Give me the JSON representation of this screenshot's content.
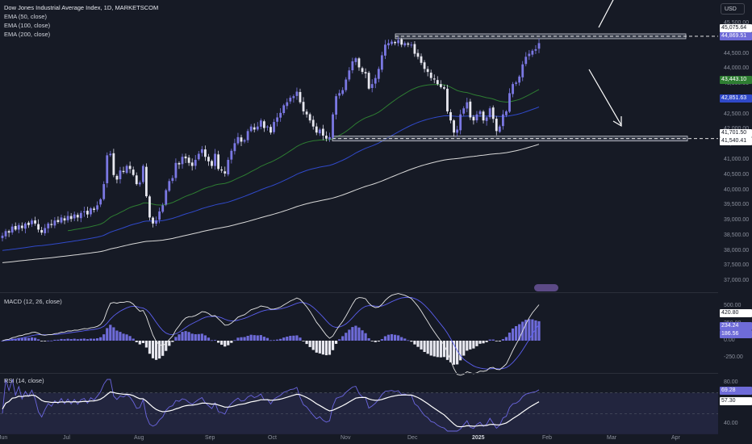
{
  "header": {
    "title": "Dow Jones Industrial Average Index, 1D, MARKETSCOM",
    "ema50": "EMA (50, close)",
    "ema100": "EMA (100, close)",
    "ema200": "EMA (200, close)",
    "currency": "USD",
    "macd_label": "MACD (12, 26, close)",
    "rsi_label": "RSI (14, close)"
  },
  "colors": {
    "bg": "#161a25",
    "candle": "#7b78e3",
    "ema50": "#2e7d32",
    "ema100": "#3049c9",
    "ema200": "#d8d8d8",
    "macd_line": "#e6e6e6",
    "signal_line": "#5b5ff0",
    "rsi_line": "#6b66e0",
    "rsi_ma": "#ffffff",
    "level_zone": "#5a5f6e"
  },
  "chart_data": [
    {
      "type": "candlestick",
      "title": "Dow Jones Industrial Average Index, 1D, MARKETSCOM",
      "x_ticks": [
        "Jun",
        "Jul",
        "Aug",
        "Sep",
        "Oct",
        "Nov",
        "Dec",
        "2025",
        "Feb",
        "Mar",
        "Apr"
      ],
      "y_ticks": [
        "45,500.00",
        "45,000.00",
        "44,500.00",
        "44,000.00",
        "43,500.00",
        "43,000.00",
        "42,500.00",
        "42,000.00",
        "41,500.00",
        "41,000.00",
        "40,500.00",
        "40,000.00",
        "39,500.00",
        "39,000.00",
        "38,500.00",
        "38,000.00",
        "37,500.00",
        "37,000.00"
      ],
      "ylim": [
        36900,
        45900
      ],
      "close": [
        38500,
        38650,
        38600,
        38800,
        38700,
        38850,
        38750,
        38900,
        38850,
        39000,
        38900,
        38700,
        38600,
        38750,
        38900,
        38850,
        39000,
        38950,
        39100,
        39000,
        39150,
        39050,
        39200,
        39100,
        39250,
        39300,
        39200,
        39400,
        39350,
        39500,
        39700,
        40200,
        41150,
        41200,
        40500,
        40350,
        40650,
        40600,
        40800,
        40700,
        40500,
        40200,
        40250,
        40800,
        39800,
        39100,
        38900,
        39000,
        39300,
        39500,
        40000,
        40300,
        40400,
        40900,
        40850,
        41100,
        41050,
        40900,
        40800,
        41000,
        41200,
        41350,
        41100,
        40950,
        40800,
        41200,
        40700,
        40650,
        40550,
        41000,
        41300,
        41550,
        41750,
        41600,
        41650,
        41950,
        42100,
        42000,
        42100,
        42300,
        42050,
        42100,
        41900,
        42250,
        42400,
        42550,
        42800,
        42900,
        43050,
        43100,
        43250,
        42900,
        42600,
        42500,
        42300,
        42100,
        41900,
        42000,
        41800,
        41700,
        41750,
        42500,
        43100,
        43200,
        43300,
        43650,
        43950,
        44250,
        44350,
        44050,
        43900,
        43850,
        43350,
        43500,
        43700,
        44000,
        44450,
        44800,
        44850,
        44900,
        44850,
        44950,
        44800,
        44850,
        44800,
        44800,
        44500,
        44400,
        44200,
        44000,
        43900,
        43700,
        43650,
        43500,
        43400,
        43350,
        42600,
        42300,
        41900,
        42000,
        42500,
        42700,
        42900,
        42400,
        42300,
        42500,
        42600,
        42300,
        42400,
        42700,
        42350,
        41950,
        42100,
        42500,
        42600,
        43200,
        43500,
        43550,
        43750,
        44150,
        44400,
        44500,
        44600,
        44650,
        44850
      ]
    },
    {
      "type": "line",
      "series": [
        {
          "name": "EMA (50, close)",
          "last": 43443.1
        },
        {
          "name": "EMA (100, close)",
          "last": 42851.63
        },
        {
          "name": "EMA (200, close)",
          "last": 41540.41
        }
      ]
    },
    {
      "type": "bar",
      "title": "MACD (12, 26, close)",
      "y_ticks": [
        "500.00",
        "250.00",
        "0.00",
        "-250.00"
      ],
      "ylim": [
        -420,
        560
      ],
      "last": {
        "macd": 420.8,
        "signal": 234.24,
        "histogram": 186.56
      }
    },
    {
      "type": "line",
      "title": "RSI (14, close)",
      "y_ticks": [
        "80.00",
        "40.00"
      ],
      "ylim": [
        33,
        83
      ],
      "band": [
        30,
        70
      ],
      "last": {
        "rsi": 69.28,
        "rsi_ma": 57.3
      }
    }
  ],
  "price_labels": {
    "p45075": "45,075.64",
    "p44869": "44,869.51",
    "p43443": "43,443.10",
    "p42851": "42,851.63",
    "p41701": "41,701.50",
    "p41540": "41,540.41",
    "m420": "420.80",
    "m234": "234.24",
    "m186": "186.56",
    "r69": "69.28",
    "r57": "57.30"
  },
  "levels": {
    "resistance": "45,075.64",
    "support": "41,701.50"
  },
  "macd_ticks": [
    "500.00",
    "250.00",
    "0.00",
    "-250.00"
  ],
  "rsi_ticks": [
    "80.00",
    "40.00"
  ],
  "x_ticks": [
    "Jun",
    "Jul",
    "Aug",
    "Sep",
    "Oct",
    "Nov",
    "Dec",
    "2025",
    "Feb",
    "Mar",
    "Apr"
  ]
}
